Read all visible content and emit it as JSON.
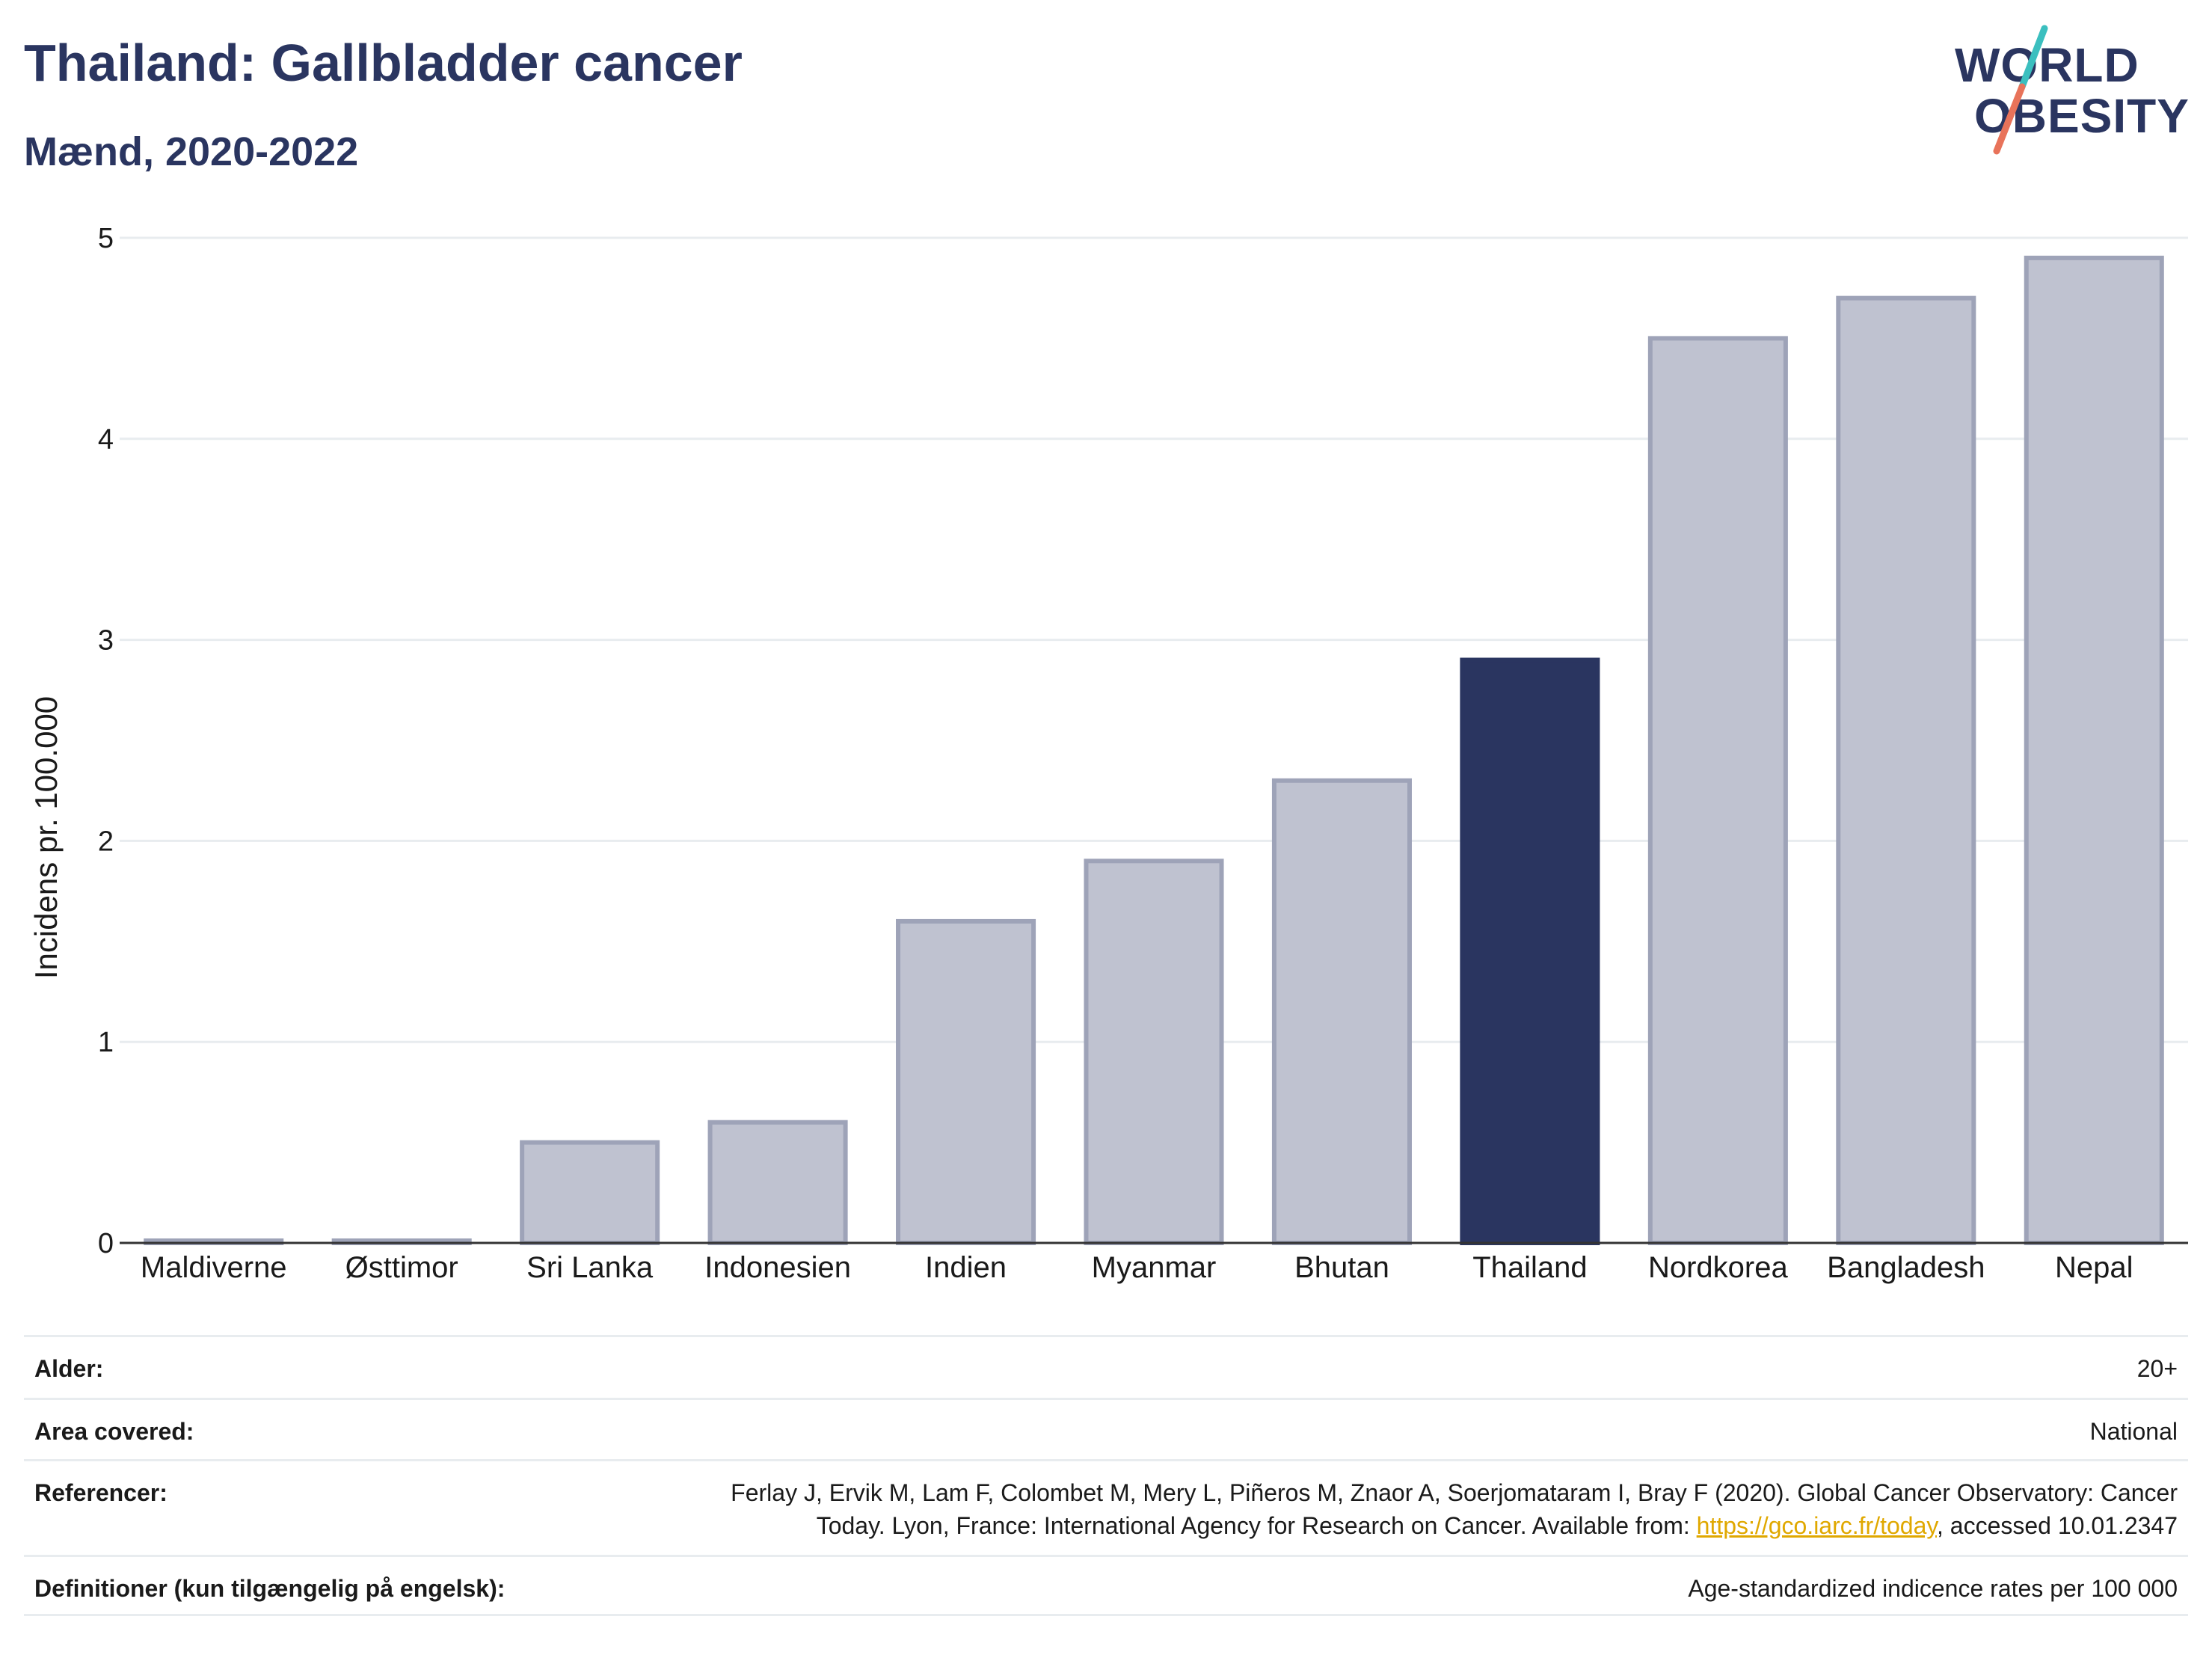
{
  "header": {
    "title": "Thailand: Gallbladder cancer",
    "subtitle": "Mænd, 2020-2022"
  },
  "logo": {
    "line1": "WORLD",
    "line2": "OBESITY",
    "colors": {
      "text": "#2a3560",
      "slash_top": "#3bbfbf",
      "slash_bottom": "#e8735a"
    }
  },
  "colors": {
    "highlight": "#2a3560",
    "bar": "#bfc2d0",
    "bar_border": "#9ea3b8",
    "grid": "#e8ecef",
    "axis": "#333333"
  },
  "chart_data": {
    "type": "bar",
    "categories": [
      "Maldiverne",
      "Østtimor",
      "Sri Lanka",
      "Indonesien",
      "Indien",
      "Myanmar",
      "Bhutan",
      "Thailand",
      "Nordkorea",
      "Bangladesh",
      "Nepal"
    ],
    "values": [
      0.0,
      0.0,
      0.5,
      0.6,
      1.6,
      1.9,
      2.3,
      2.9,
      4.5,
      4.7,
      4.9
    ],
    "highlight": "Thailand",
    "ylabel": "Incidens pr. 100.000",
    "xlabel": "",
    "ylim": [
      0,
      5
    ],
    "yticks": [
      0,
      1,
      2,
      3,
      4,
      5
    ],
    "grid": true
  },
  "meta": {
    "rows": [
      {
        "label": "Alder:",
        "value": "20+"
      },
      {
        "label": "Area covered:",
        "value": "National"
      },
      {
        "label": "Referencer:",
        "value_line1": "Ferlay J, Ervik M, Lam F, Colombet M, Mery L, Piñeros M, Znaor A, Soerjomataram I, Bray F (2020). Global Cancer Observatory: Cancer",
        "value_line2_prefix": "Today. Lyon, France: International Agency for Research on Cancer. Available from: ",
        "link": "https://gco.iarc.fr/today",
        "value_line2_suffix": ", accessed 10.01.2347"
      },
      {
        "label": "Definitioner (kun tilgængelig på engelsk):",
        "value": "Age-standardized indicence rates per 100 000"
      }
    ]
  }
}
